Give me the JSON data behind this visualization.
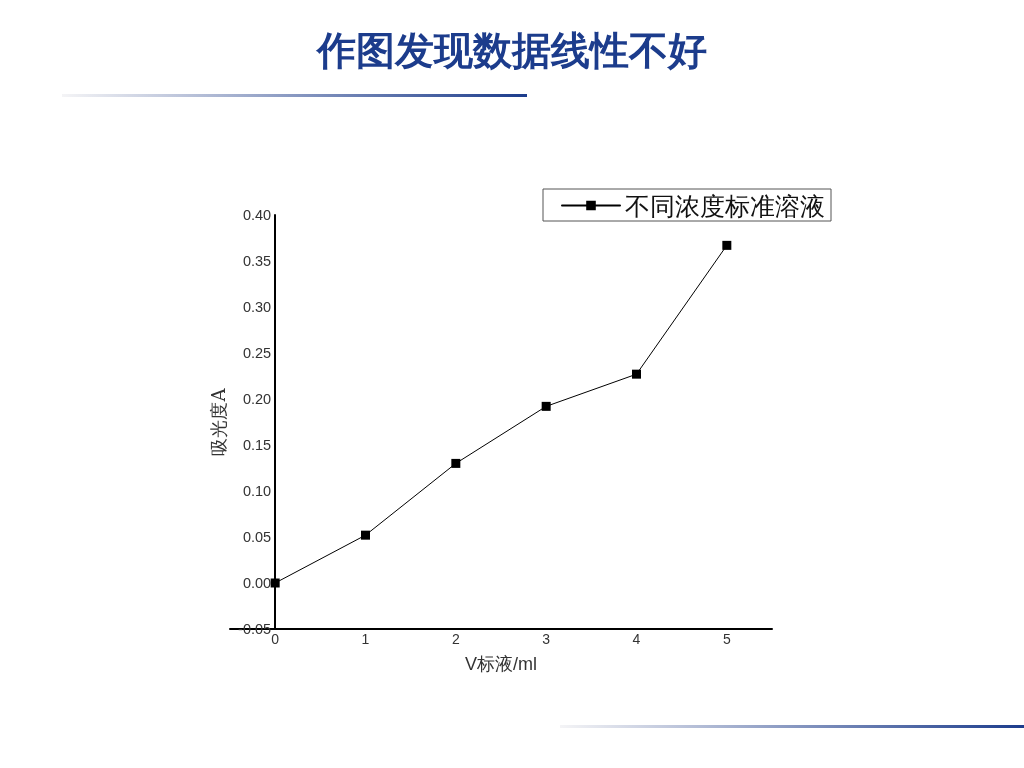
{
  "chart_data": {
    "type": "line",
    "title": "作图发现数据线性不好",
    "xlabel": "V标液/ml",
    "ylabel": "吸光度A",
    "x": [
      0,
      1,
      2,
      3,
      4,
      5
    ],
    "series": [
      {
        "name": "不同浓度标准溶液",
        "color": "#000000",
        "values": [
          0.0,
          0.052,
          0.13,
          0.192,
          0.227,
          0.367
        ]
      }
    ],
    "xlim": [
      -0.5,
      5.5
    ],
    "xticks": [
      0,
      1,
      2,
      3,
      4,
      5
    ],
    "ylim": [
      -0.05,
      0.4
    ],
    "yticks": [
      {
        "value": -0.05,
        "label": "-0.05"
      },
      {
        "value": 0,
        "label": "0.00"
      },
      {
        "value": 0.05,
        "label": "0.05"
      },
      {
        "value": 0.1,
        "label": "0.10"
      },
      {
        "value": 0.15,
        "label": "0.15"
      },
      {
        "value": 0.2,
        "label": "0.20"
      },
      {
        "value": 0.25,
        "label": "0.25"
      },
      {
        "value": 0.3,
        "label": "0.30"
      },
      {
        "value": 0.35,
        "label": "0.35"
      },
      {
        "value": 0.4,
        "label": "0.40"
      }
    ],
    "legend": "top right",
    "marker": "square",
    "line_style": "solid"
  }
}
